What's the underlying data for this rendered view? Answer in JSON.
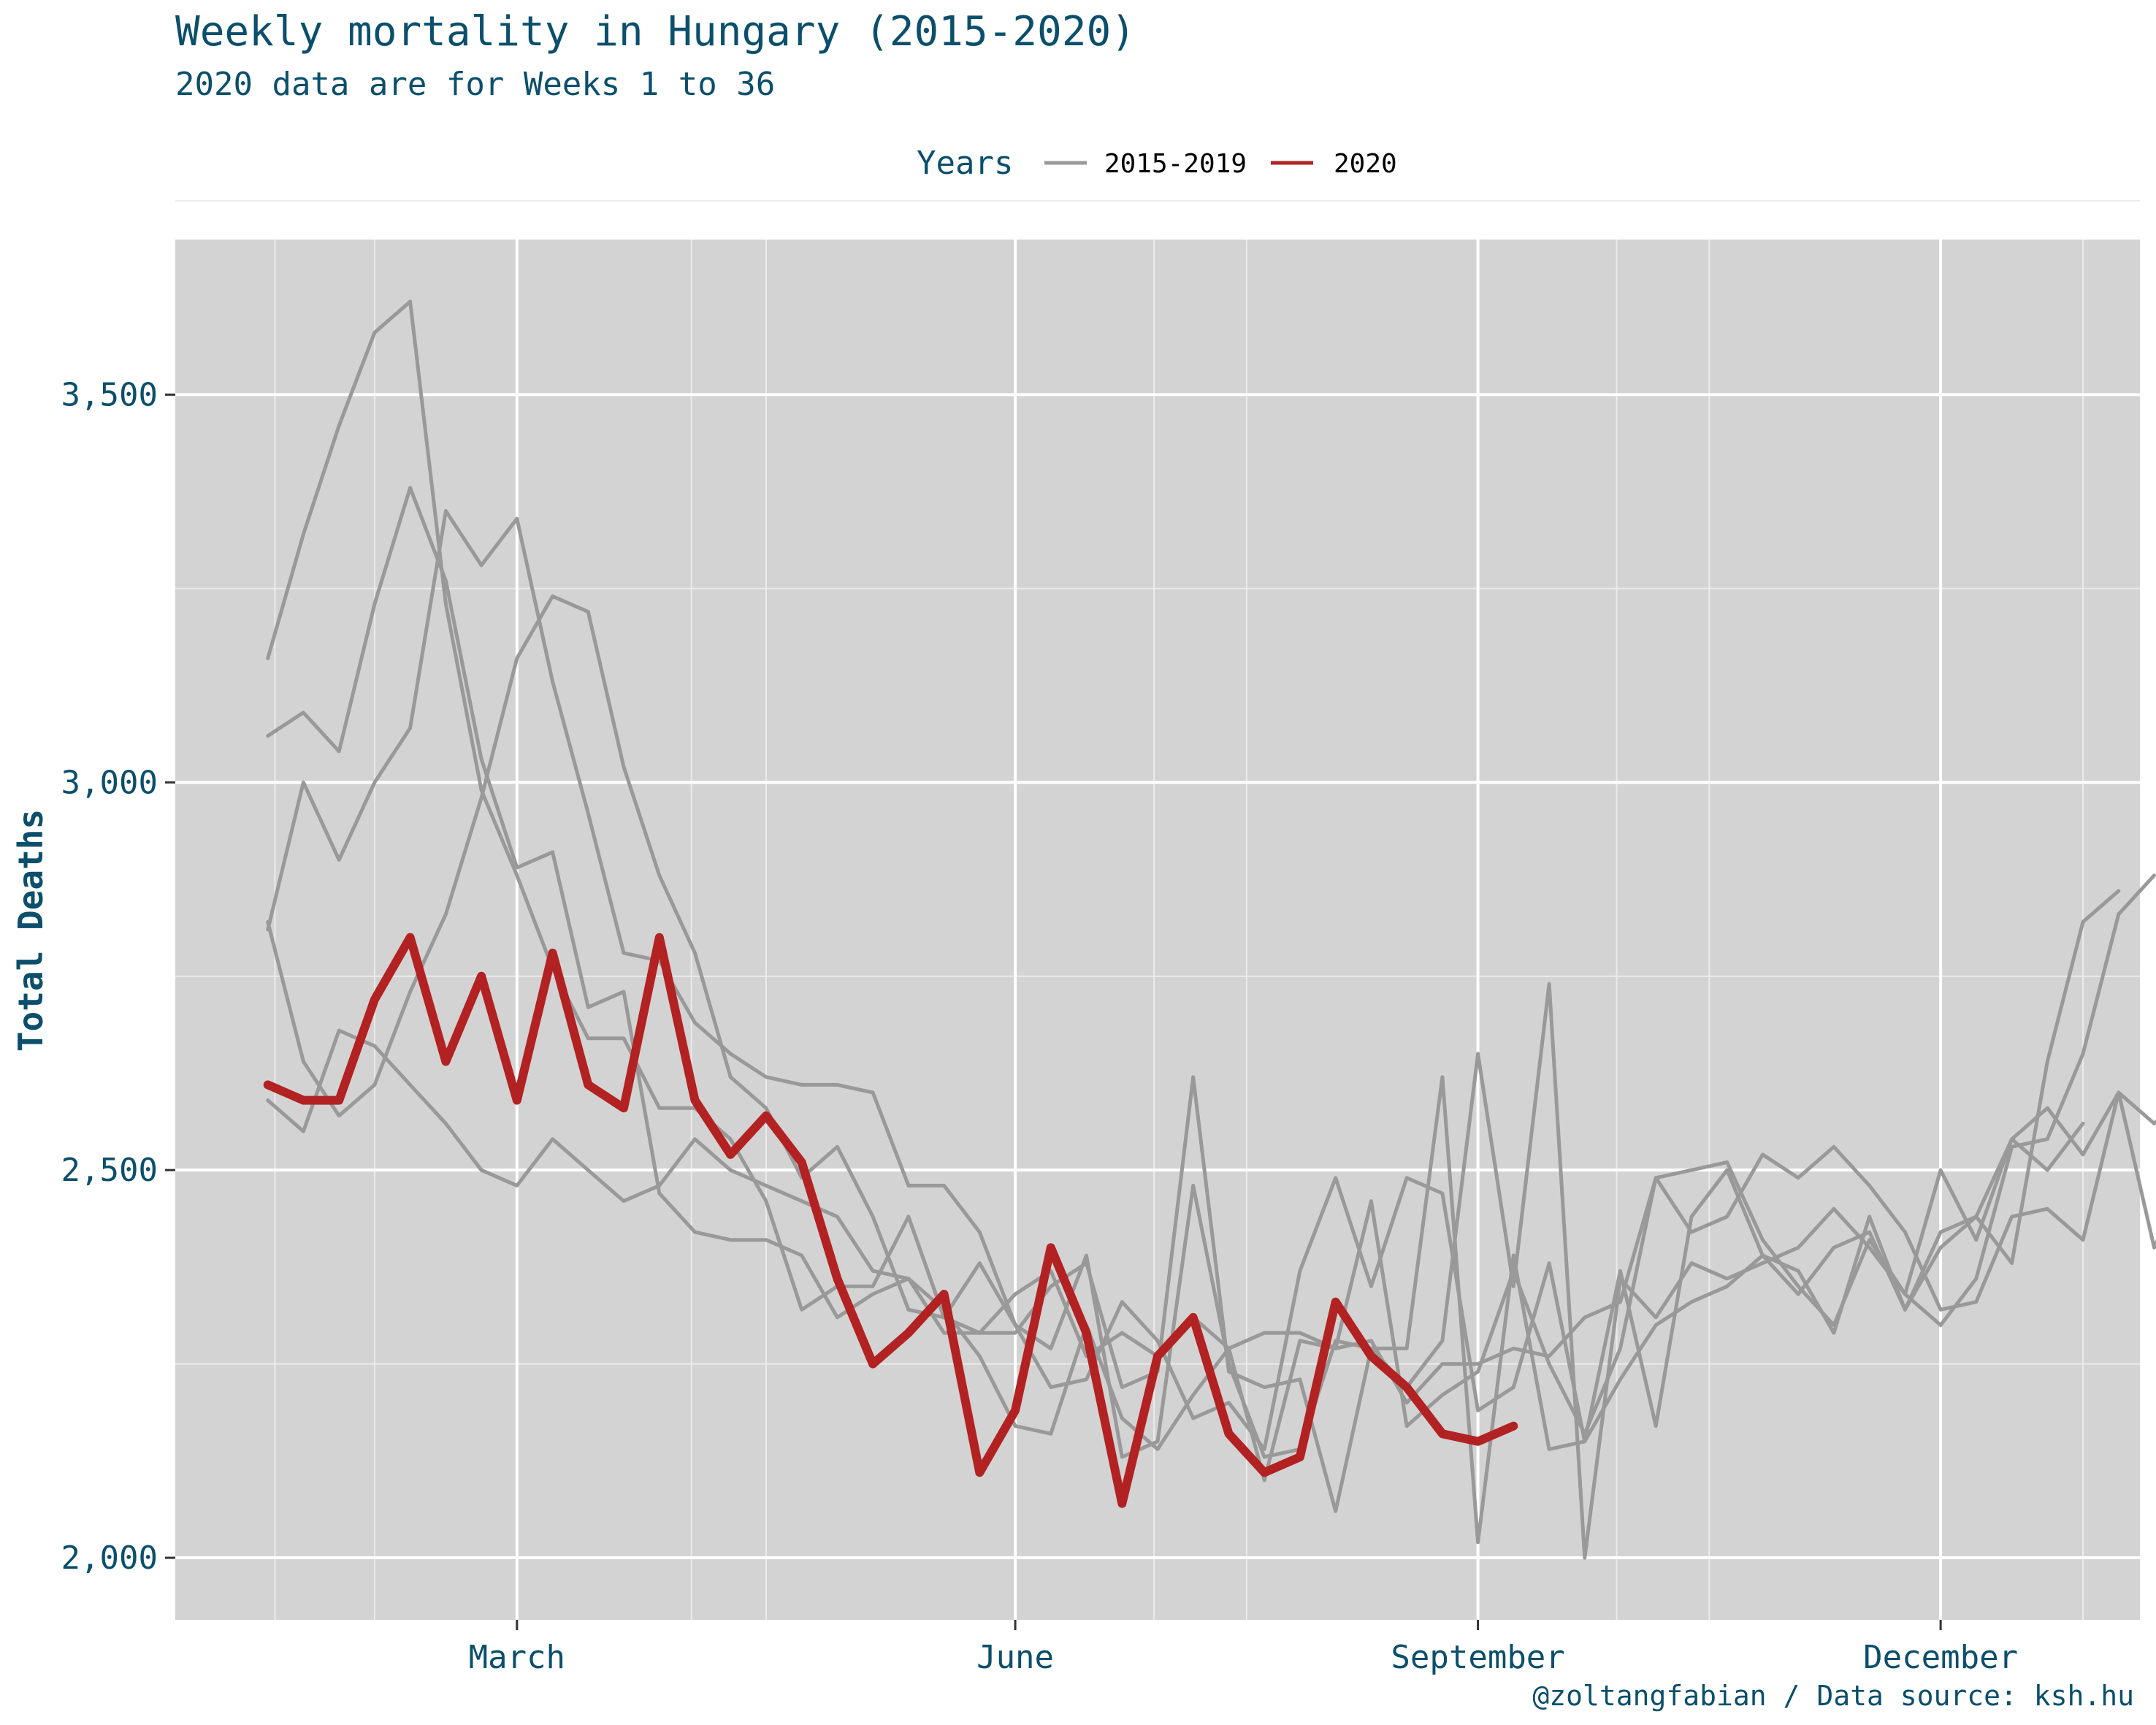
{
  "chart_data": {
    "type": "line",
    "title": "Weekly mortality in Hungary (2015-2020)",
    "subtitle": "2020 data are for Weeks 1 to 36",
    "ylabel": "Total Deaths",
    "xlabel": "",
    "caption": "@zoltangfabian / Data source: ksh.hu",
    "legend": {
      "title": "Years",
      "position": "top",
      "entries": [
        {
          "label": "2015-2019",
          "color": "#999999"
        },
        {
          "label": "2020",
          "color": "#b22222"
        }
      ]
    },
    "x_axis": {
      "unit": "week",
      "range": [
        -1.6,
        53.6
      ],
      "tick_labels": [
        {
          "label": "March",
          "week": 8
        },
        {
          "label": "June",
          "week": 22
        },
        {
          "label": "September",
          "week": 35
        },
        {
          "label": "December",
          "week": 48
        }
      ]
    },
    "y_axis": {
      "range": [
        1920,
        3700
      ],
      "ticks": [
        2000,
        2500,
        3000,
        3500
      ],
      "tick_labels": [
        "2,000",
        "2,500",
        "3,000",
        "3,500"
      ]
    },
    "grid": true,
    "background": "#d3d3d3",
    "series": [
      {
        "group": "2015-2019",
        "color": "#999999",
        "values": [
          3160,
          3320,
          3460,
          3580,
          3620,
          3230,
          2990,
          2880,
          2760,
          2670,
          2670,
          2580,
          2580,
          2540,
          2460,
          2320,
          2350,
          2350,
          2440,
          2310,
          2290,
          2340,
          2370,
          2260,
          2290,
          2260,
          2310,
          2270,
          2100,
          2280,
          2270,
          2460,
          2170,
          2210,
          2240,
          2370,
          2250,
          2160,
          2270,
          2490,
          2500,
          2510,
          2410,
          2350,
          2300,
          2410,
          2340,
          2300,
          2360,
          2530,
          2540,
          2650,
          2830,
          2880
        ]
      },
      {
        "group": "2015-2019",
        "color": "#999999",
        "values": [
          3060,
          3090,
          3040,
          3230,
          3380,
          3260,
          3030,
          2890,
          2910,
          2710,
          2730,
          2470,
          2420,
          2410,
          2410,
          2390,
          2310,
          2340,
          2360,
          2290,
          2290,
          2290,
          2350,
          2380,
          2220,
          2240,
          2620,
          2240,
          2220,
          2230,
          2060,
          2270,
          2270,
          2620,
          2020,
          2390,
          2140,
          2150,
          2230,
          2300,
          2330,
          2350,
          2390,
          2340,
          2400,
          2420,
          2320,
          2400,
          2440,
          2380,
          2640,
          2820,
          2860
        ]
      },
      {
        "group": "2015-2019",
        "color": "#999999",
        "values": [
          2810,
          3000,
          2900,
          3000,
          3070,
          3350,
          3280,
          3340,
          3130,
          2960,
          2780,
          2770,
          2690,
          2650,
          2620,
          2610,
          2610,
          2600,
          2480,
          2480,
          2420,
          2300,
          2220,
          2230,
          2330,
          2280,
          2180,
          2200,
          2140,
          2370,
          2490,
          2350,
          2490,
          2470,
          2190,
          2220,
          2380,
          2150,
          2370,
          2170,
          2440,
          2500,
          2390,
          2370,
          2290,
          2440,
          2320,
          2420,
          2440,
          2540,
          2500,
          2560
        ]
      },
      {
        "group": "2015-2019",
        "color": "#999999",
        "values": [
          2820,
          2640,
          2570,
          2610,
          2730,
          2830,
          2980,
          3160,
          3240,
          3220,
          3020,
          2880,
          2780,
          2620,
          2580,
          2490,
          2530,
          2440,
          2320,
          2310,
          2380,
          2300,
          2270,
          2390,
          2130,
          2150,
          2480,
          2250,
          2130,
          2140,
          2280,
          2270,
          2220,
          2280,
          2650,
          2350,
          2740,
          2000,
          2360,
          2310,
          2380,
          2360,
          2380,
          2400,
          2450,
          2400,
          2340,
          2500,
          2410,
          2540,
          2580,
          2520,
          2600,
          2400,
          2500
        ]
      },
      {
        "group": "2015-2019",
        "color": "#999999",
        "values": [
          2590,
          2550,
          2680,
          2660,
          2610,
          2560,
          2500,
          2480,
          2540,
          2500,
          2460,
          2480,
          2540,
          2500,
          2480,
          2460,
          2440,
          2370,
          2360,
          2320,
          2260,
          2170,
          2160,
          2300,
          2180,
          2140,
          2210,
          2270,
          2290,
          2290,
          2270,
          2280,
          2200,
          2250,
          2250,
          2270,
          2260,
          2310,
          2330,
          2490,
          2420,
          2440,
          2520,
          2490,
          2530,
          2480,
          2420,
          2320,
          2330,
          2440,
          2450,
          2410,
          2600,
          2560,
          2600
        ]
      },
      {
        "group": "2020",
        "color": "#b22222",
        "values": [
          2610,
          2590,
          2590,
          2720,
          2800,
          2640,
          2750,
          2590,
          2780,
          2610,
          2580,
          2800,
          2590,
          2520,
          2570,
          2510,
          2360,
          2250,
          2290,
          2340,
          2110,
          2190,
          2400,
          2290,
          2070,
          2260,
          2310,
          2160,
          2110,
          2130,
          2330,
          2260,
          2220,
          2160,
          2150,
          2170
        ]
      }
    ]
  }
}
